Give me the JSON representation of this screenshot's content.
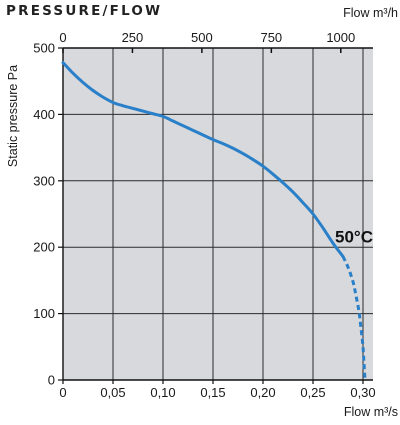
{
  "chart_data": {
    "type": "line",
    "title": "PRESSURE/FLOW",
    "ylabel": "Static pressure Pa",
    "xlabel": "Flow m³/s",
    "x2label": "Flow m³/h",
    "xlim": [
      0,
      0.31
    ],
    "ylim": [
      0,
      500
    ],
    "x2lim": [
      0,
      1116
    ],
    "x_ticks": [
      0,
      0.05,
      0.1,
      0.15,
      0.2,
      0.25,
      0.3
    ],
    "x_tick_labels": [
      "0",
      "0,05",
      "0,10",
      "0,15",
      "0,20",
      "0,25",
      "0,30"
    ],
    "y_ticks": [
      0,
      100,
      200,
      300,
      400,
      500
    ],
    "y_tick_labels": [
      "0",
      "100",
      "200",
      "300",
      "400",
      "500"
    ],
    "x2_ticks": [
      0,
      250,
      500,
      750,
      1000
    ],
    "x2_tick_labels": [
      "0",
      "250",
      "500",
      "750",
      "1000"
    ],
    "grid": true,
    "series": [
      {
        "color": "#2a7fc9",
        "points": [
          [
            0.0,
            478
          ],
          [
            0.01,
            462
          ],
          [
            0.02,
            448
          ],
          [
            0.03,
            436
          ],
          [
            0.04,
            426
          ],
          [
            0.05,
            418
          ],
          [
            0.06,
            413
          ],
          [
            0.07,
            409
          ],
          [
            0.08,
            405
          ],
          [
            0.09,
            401
          ],
          [
            0.1,
            397
          ],
          [
            0.11,
            390
          ],
          [
            0.12,
            383
          ],
          [
            0.13,
            376
          ],
          [
            0.14,
            369
          ],
          [
            0.15,
            362
          ],
          [
            0.16,
            356
          ],
          [
            0.17,
            349
          ],
          [
            0.18,
            341
          ],
          [
            0.19,
            332
          ],
          [
            0.2,
            322
          ],
          [
            0.21,
            310
          ],
          [
            0.22,
            297
          ],
          [
            0.23,
            283
          ],
          [
            0.24,
            267
          ],
          [
            0.25,
            250
          ],
          [
            0.26,
            229
          ],
          [
            0.27,
            206
          ],
          [
            0.28,
            186
          ]
        ],
        "dashed_points": [
          [
            0.28,
            186
          ],
          [
            0.285,
            170
          ],
          [
            0.29,
            148
          ],
          [
            0.293,
            127
          ],
          [
            0.296,
            103
          ],
          [
            0.298,
            78
          ],
          [
            0.3,
            50
          ],
          [
            0.301,
            25
          ],
          [
            0.302,
            0
          ]
        ]
      }
    ],
    "annotations": [
      {
        "text": "50°C",
        "x": 0.31,
        "y": 207
      }
    ]
  }
}
